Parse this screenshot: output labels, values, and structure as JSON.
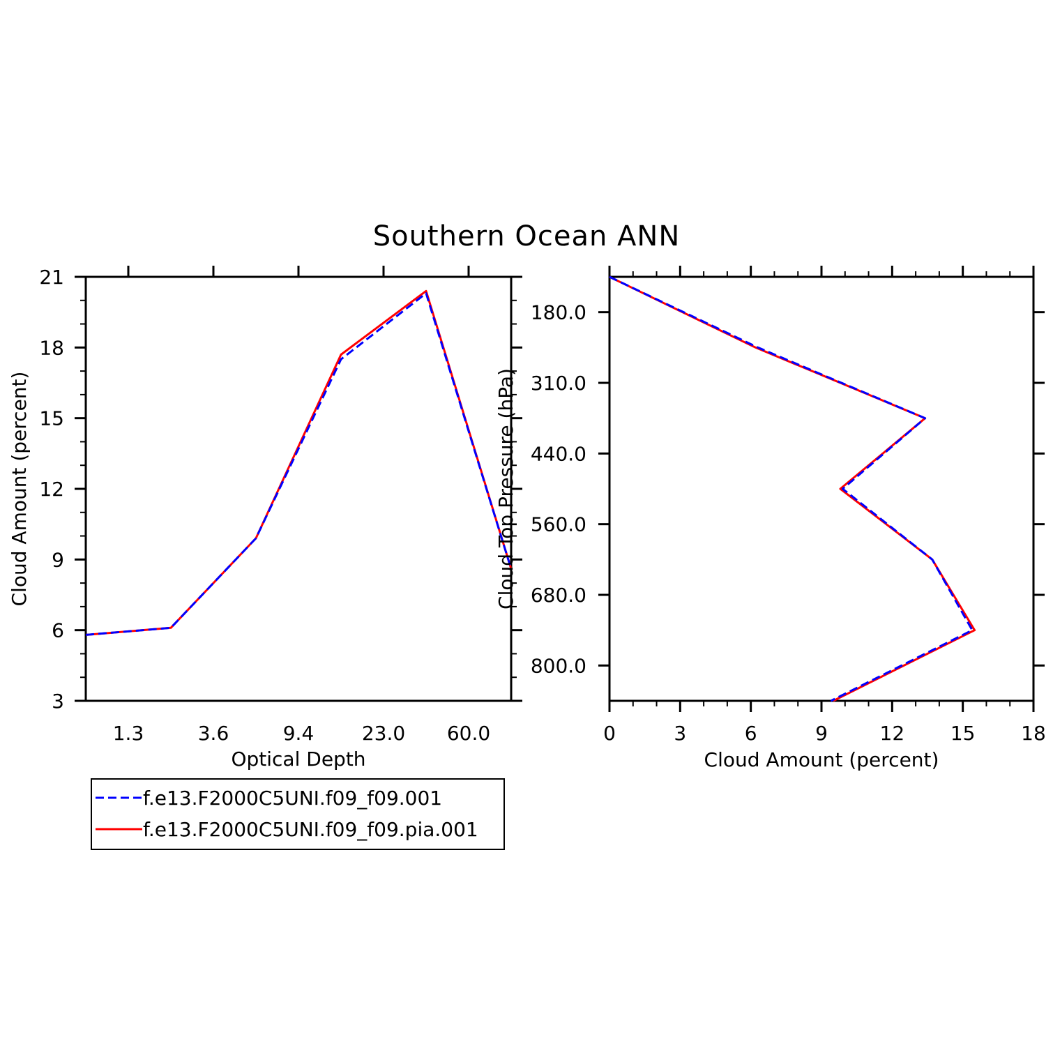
{
  "title": "Southern Ocean ANN",
  "legend": {
    "entries": [
      {
        "label": "f.e13.F2000C5UNI.f09_f09.001",
        "color": "#0000ff",
        "dash": "dashed"
      },
      {
        "label": "f.e13.F2000C5UNI.f09_f09.pia.001",
        "color": "#ff0000",
        "dash": "solid"
      }
    ]
  },
  "chart_data": [
    {
      "type": "line",
      "xlabel": "Optical Depth",
      "ylabel": "Cloud Amount (percent)",
      "x_tick_labels": [
        "1.3",
        "3.6",
        "9.4",
        "23.0",
        "60.0"
      ],
      "y_tick_labels": [
        "3",
        "6",
        "9",
        "12",
        "15",
        "18",
        "21"
      ],
      "ylim": [
        3,
        21
      ],
      "x_bin_index": [
        0,
        1,
        2,
        3,
        4,
        5
      ],
      "series": [
        {
          "name": "f.e13.F2000C5UNI.f09_f09.001",
          "color": "#0000ff",
          "dash": "dashed",
          "values": [
            5.8,
            6.1,
            9.9,
            17.5,
            20.3,
            8.6
          ]
        },
        {
          "name": "f.e13.F2000C5UNI.f09_f09.pia.001",
          "color": "#ff0000",
          "dash": "solid",
          "values": [
            5.8,
            6.1,
            9.9,
            17.7,
            20.4,
            8.6
          ]
        }
      ]
    },
    {
      "type": "line",
      "xlabel": "Cloud Amount (percent)",
      "ylabel": "Cloud Top Pressure (hPa)",
      "x_tick_labels": [
        "0",
        "3",
        "6",
        "9",
        "12",
        "15",
        "18"
      ],
      "y_tick_labels": [
        "180.0",
        "310.0",
        "440.0",
        "560.0",
        "680.0",
        "800.0"
      ],
      "xlim": [
        0,
        18
      ],
      "y_level_index": [
        0,
        1,
        2,
        3,
        4,
        5,
        6
      ],
      "series": [
        {
          "name": "f.e13.F2000C5UNI.f09_f09.001",
          "color": "#0000ff",
          "dash": "dashed",
          "values": [
            0.0,
            6.3,
            13.4,
            9.9,
            13.7,
            15.4,
            9.4
          ]
        },
        {
          "name": "f.e13.F2000C5UNI.f09_f09.pia.001",
          "color": "#ff0000",
          "dash": "solid",
          "values": [
            0.0,
            6.2,
            13.4,
            9.8,
            13.7,
            15.5,
            9.5
          ]
        }
      ]
    }
  ]
}
